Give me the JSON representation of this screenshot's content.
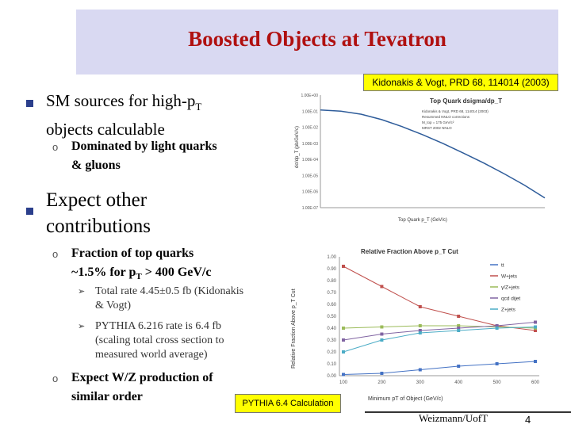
{
  "title": "Boosted Objects at Tevatron",
  "citation": "Kidonakis & Vogt, PRD 68, 114014 (2003)",
  "bullets": {
    "sm_sources_line1": "SM sources for high-p",
    "sm_sources_sub": "T",
    "sm_sources_line2": "objects calculable",
    "dominated_line1": "Dominated by light quarks",
    "dominated_line2": "& gluons",
    "expect_line1": "Expect other",
    "expect_line2": "contributions",
    "fraction_line1": "Fraction of top quarks",
    "fraction_line2a": "~1.5% for p",
    "fraction_line2sub": "T",
    "fraction_line2b": " > 400 GeV/c",
    "total_rate_line1": "Total rate 4.45±0.5 fb (Kidonakis",
    "total_rate_line2": "& Vogt)",
    "pythia_line1": "PYTHIA 6.216 rate is 6.4 fb",
    "pythia_line2": "(scaling total cross section to",
    "pythia_line3": "measured world average)",
    "wz_line1": "Expect W/Z production of",
    "wz_line2": "similar order"
  },
  "markers": {
    "square": "■",
    "circle": "o",
    "arrow": "➢"
  },
  "pythia_note": "PYTHIA 6.4 Calculation",
  "footer": "Weizmann/UofT",
  "page_number": "4",
  "colors": {
    "title": "#b01010",
    "title_bg": "#d9d9f2",
    "highlight": "#ffff00",
    "top_curve": "#2e5c9a",
    "series_tt": "#4472c4",
    "series_wjets": "#c0504d",
    "series_gamma_jets": "#9bbb59",
    "series_qcd": "#8064a2",
    "series_zjets": "#4bacc6"
  },
  "chart_data": [
    {
      "type": "line",
      "title": "Top Quark dsigma/dp_T",
      "xlabel": "Top Quark p_T (GeV/c)",
      "ylabel": "dσ/dp_T (pb/GeV/c)",
      "legend_lines": [
        "Kidonakis & Vogt, PRD 68, 114014 (2003)",
        "Resummed NNLO corrections",
        "M_top = 175 GeV/c²",
        "MRST 2002 NNLO"
      ],
      "ytick_labels": [
        "1.00E+00",
        "1.00E-01",
        "1.00E-02",
        "1.00E-03",
        "1.00E-04",
        "1.00E-05",
        "1.00E-06",
        "1.00E-07"
      ],
      "yscale": "log",
      "ylim": [
        1e-07,
        1
      ],
      "xlim": [
        0,
        550
      ],
      "x": [
        0,
        50,
        100,
        150,
        200,
        250,
        300,
        350,
        400,
        450,
        500,
        550
      ],
      "values": [
        0.12,
        0.1,
        0.065,
        0.03,
        0.011,
        0.0035,
        0.001,
        0.00025,
        6e-05,
        1.3e-05,
        2.5e-06,
        4e-07
      ]
    },
    {
      "type": "line",
      "title": "Relative Fraction Above p_T Cut",
      "xlabel": "Minimum pT of Object (GeV/c)",
      "ylabel": "Relative Fraction Above p_T Cut",
      "categories": [
        "100",
        "200",
        "300",
        "400",
        "500",
        "600"
      ],
      "x": [
        100,
        200,
        300,
        400,
        500,
        600
      ],
      "ytick_labels": [
        "0.00",
        "0.10",
        "0.20",
        "0.30",
        "0.40",
        "0.50",
        "0.60",
        "0.70",
        "0.80",
        "0.90",
        "1.00"
      ],
      "ylim": [
        0,
        1
      ],
      "series": [
        {
          "name": "tt",
          "values": [
            0.01,
            0.02,
            0.05,
            0.08,
            0.1,
            0.12
          ]
        },
        {
          "name": "W+jets",
          "values": [
            0.92,
            0.75,
            0.58,
            0.5,
            0.42,
            0.38
          ]
        },
        {
          "name": "γ/Z+jets",
          "values": [
            0.4,
            0.41,
            0.42,
            0.42,
            0.41,
            0.4
          ]
        },
        {
          "name": "qcd dijet",
          "values": [
            0.3,
            0.35,
            0.38,
            0.4,
            0.42,
            0.45
          ]
        },
        {
          "name": "Z+jets",
          "values": [
            0.2,
            0.3,
            0.36,
            0.38,
            0.4,
            0.41
          ]
        }
      ]
    }
  ]
}
